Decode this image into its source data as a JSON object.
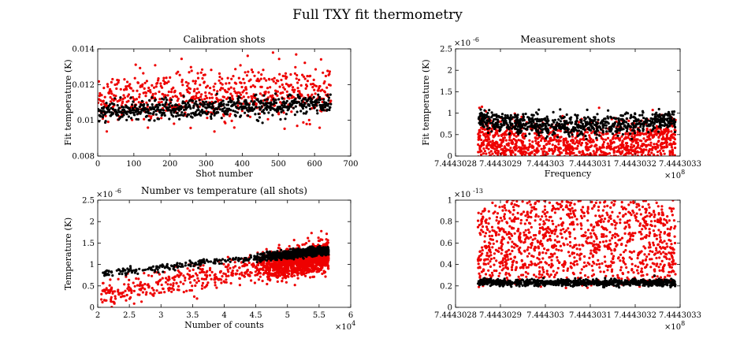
{
  "figure": {
    "suptitle": "Full TXY fit thermometry"
  },
  "colors": {
    "series_red": "#ee0000",
    "series_black": "#000000"
  },
  "chart_data": [
    {
      "type": "scatter",
      "title": "Calibration shots",
      "xlabel": "Shot number",
      "ylabel": "Fit temperature (K)",
      "xlim": [
        0,
        700
      ],
      "ylim": [
        0.008,
        0.014
      ],
      "xticks": [
        0,
        100,
        200,
        300,
        400,
        500,
        600,
        700
      ],
      "xtick_labels": [
        "0",
        "100",
        "200",
        "300",
        "400",
        "500",
        "600",
        "700"
      ],
      "yticks": [
        0.008,
        0.01,
        0.012,
        0.014
      ],
      "ytick_labels": [
        "0.008",
        "0.01",
        "0.012",
        "0.014"
      ],
      "x_exponent": "",
      "y_exponent": "",
      "grid": false,
      "series": [
        {
          "color": "red",
          "x_range": [
            1,
            645
          ],
          "baseline": 0.0112,
          "baseline_slope": 0.0004,
          "noise": 0.0007,
          "n": 645
        },
        {
          "color": "black",
          "x_range": [
            1,
            645
          ],
          "baseline": 0.01045,
          "baseline_slope": 0.0005,
          "noise": 0.00028,
          "n": 645
        }
      ]
    },
    {
      "type": "scatter",
      "title": "Measurement shots",
      "xlabel": "Frequency",
      "ylabel": "Fit temperature (K)",
      "xlim": [
        744430280.0,
        744430330.0
      ],
      "ylim": [
        0,
        2.5e-06
      ],
      "xticks": [
        744430280.0,
        744430290.0,
        744430300.0,
        744430310.0,
        744430320.0,
        744430330.0
      ],
      "xtick_labels": [
        "7.4443028",
        "7.4443029",
        "7.444303",
        "7.4443031",
        "7.4443032",
        "7.4443033"
      ],
      "yticks": [
        0,
        5e-07,
        1e-06,
        1.5e-06,
        2e-06,
        2.5e-06
      ],
      "ytick_labels": [
        "0",
        "0.5",
        "1",
        "1.5",
        "2",
        "2.5"
      ],
      "x_exponent": "×10",
      "x_exponent_power": "8",
      "y_exponent": "×10",
      "y_exponent_power": "-6",
      "grid": false,
      "series": [
        {
          "color": "red",
          "x_range": [
            744430285.0,
            744430329.0
          ],
          "baseline": 1.45e-06,
          "noise": 2.2e-07,
          "dips": [
            {
              "center": 744430295.0,
              "width": 50.0,
              "depth": 6.5e-07
            },
            {
              "center": 744430316.0,
              "width": 50.0,
              "depth": 8e-07
            }
          ],
          "n": 1400
        },
        {
          "color": "black",
          "x_range": [
            744430285.0,
            744430329.0
          ],
          "baseline": 1.32e-06,
          "noise": 7e-08,
          "dips": [
            {
              "center": 744430295.0,
              "width": 50.0,
              "depth": 3e-07
            },
            {
              "center": 744430316.0,
              "width": 50.0,
              "depth": 3.5e-07
            }
          ],
          "n": 800
        }
      ]
    },
    {
      "type": "scatter",
      "title": "Number vs temperature (all shots)",
      "xlabel": "Number of counts",
      "ylabel": "Temperature (K)",
      "xlim": [
        20000,
        60000
      ],
      "ylim": [
        0,
        2.5e-06
      ],
      "xticks": [
        20000,
        25000,
        30000,
        35000,
        40000,
        45000,
        50000,
        55000,
        60000
      ],
      "xtick_labels": [
        "2",
        "2.5",
        "3",
        "3.5",
        "4",
        "4.5",
        "5",
        "5.5",
        "6"
      ],
      "yticks": [
        0,
        5e-07,
        1e-06,
        1.5e-06,
        2e-06,
        2.5e-06
      ],
      "ytick_labels": [
        "0",
        "0.5",
        "1",
        "1.5",
        "2",
        "2.5"
      ],
      "x_exponent": "×10",
      "x_exponent_power": "4",
      "y_exponent": "×10",
      "y_exponent_power": "-6",
      "grid": false,
      "series": [
        {
          "color": "red",
          "relation": "t = 0.3e-6 + 2.45e-11*(n-20000) + noise",
          "x_range": [
            20500,
            56500
          ],
          "n": 1700
        },
        {
          "color": "black",
          "relation": "t = 0.78e-6 + 1.5e-11*(n-20000) + noise",
          "x_range": [
            20500,
            56500
          ],
          "n": 1100
        }
      ]
    },
    {
      "type": "scatter",
      "title": "",
      "xlabel": "",
      "ylabel": "",
      "xlim": [
        744430280.0,
        744430330.0
      ],
      "ylim": [
        0,
        1e-13
      ],
      "xticks": [
        744430280.0,
        744430290.0,
        744430300.0,
        744430310.0,
        744430320.0,
        744430330.0
      ],
      "xtick_labels": [
        "7.4443028",
        "7.4443029",
        "7.444303",
        "7.4443031",
        "7.4443032",
        "7.4443033"
      ],
      "yticks": [
        0,
        2e-14,
        4e-14,
        6e-14,
        8e-14,
        1e-13
      ],
      "ytick_labels": [
        "0",
        "0.2",
        "0.4",
        "0.6",
        "0.8",
        "1"
      ],
      "x_exponent": "×10",
      "x_exponent_power": "8",
      "y_exponent": "×10",
      "y_exponent_power": "-13",
      "grid": false,
      "series": [
        {
          "color": "red",
          "x_range": [
            744430285.0,
            744430329.0
          ],
          "baseline": 1.9e-14,
          "noise": 3e-15,
          "peaks": [
            {
              "center": 744430295.0,
              "width": 40.0,
              "height": 4.5e-14
            },
            {
              "center": 744430316.0,
              "width": 40.0,
              "height": 6e-14
            }
          ],
          "n": 1400
        },
        {
          "color": "black",
          "x_range": [
            744430285.0,
            744430329.0
          ],
          "baseline": 2.3e-14,
          "noise": 1.5e-15,
          "n": 800
        }
      ]
    }
  ]
}
